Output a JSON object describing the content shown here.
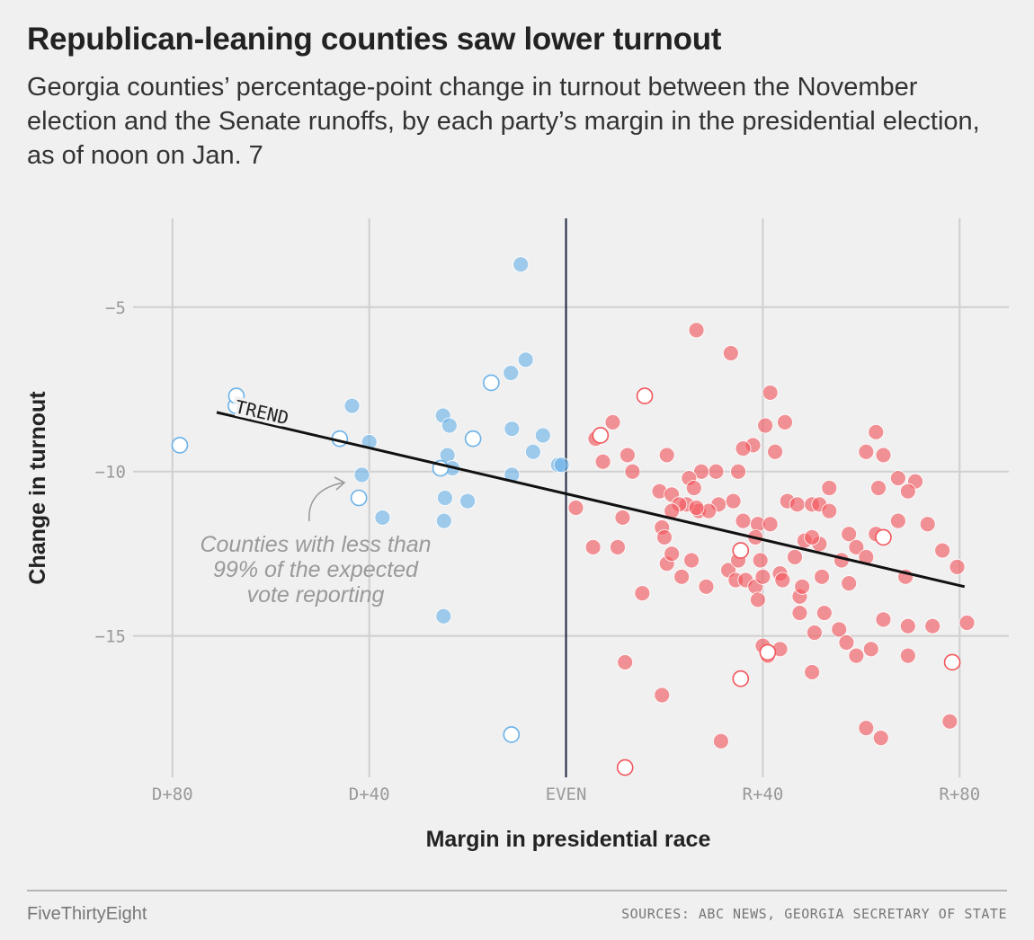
{
  "title": "Republican-leaning counties saw lower turnout",
  "subtitle": "Georgia counties’ percentage-point change in turnout between the November election and the Senate runoffs, by each party’s margin in the presidential election, as of noon on Jan. 7",
  "footer": {
    "brand": "FiveThirtyEight",
    "sources": "SOURCES: ABC NEWS, GEORGIA SECRETARY OF STATE"
  },
  "colors": {
    "democrat": "#6bb2e8",
    "republican": "#f2565c",
    "trend": "#111111",
    "even_line": "#1c2740",
    "grid": "#cfcfcf"
  },
  "chart_data": {
    "type": "scatter",
    "xlabel": "Margin in presidential race",
    "ylabel": "Change in turnout",
    "xlim": [
      -88,
      90
    ],
    "ylim": [
      -19.3,
      -2.3
    ],
    "x_ticks": [
      {
        "value": -80,
        "label": "D+80"
      },
      {
        "value": -40,
        "label": "D+40"
      },
      {
        "value": 0,
        "label": "EVEN"
      },
      {
        "value": 40,
        "label": "R+40"
      },
      {
        "value": 80,
        "label": "R+80"
      }
    ],
    "y_ticks": [
      {
        "value": -5,
        "label": "−5"
      },
      {
        "value": -10,
        "label": "−10"
      },
      {
        "value": -15,
        "label": "−15"
      }
    ],
    "grid": true,
    "reference_line": {
      "x": 0
    },
    "trend": {
      "label": "TREND",
      "x": [
        -71,
        81
      ],
      "y": [
        -8.2,
        -13.5
      ]
    },
    "annotation": {
      "lines": [
        "Counties with less than",
        "99% of the expected",
        "vote reporting"
      ]
    },
    "legend_note": "Open circles: counties with less than 99% of the expected vote reporting",
    "series": [
      {
        "party": "D",
        "points": [
          [
            -9.2,
            -3.7
          ],
          [
            -8.2,
            -6.6
          ],
          [
            -11.2,
            -7.0
          ],
          [
            -11.0,
            -8.7
          ],
          [
            -4.7,
            -8.9
          ],
          [
            -6.7,
            -9.4
          ],
          [
            -1.6,
            -9.8
          ],
          [
            -0.9,
            -9.8
          ],
          [
            -11.0,
            -10.1
          ],
          [
            -20.0,
            -10.9
          ],
          [
            -24.1,
            -9.5
          ],
          [
            -25.0,
            -8.3
          ],
          [
            -23.7,
            -8.6
          ],
          [
            -23.1,
            -9.9
          ],
          [
            -24.6,
            -10.8
          ],
          [
            -24.8,
            -11.5
          ],
          [
            -24.9,
            -14.4
          ],
          [
            -40.0,
            -9.1
          ],
          [
            -41.5,
            -10.1
          ],
          [
            -43.5,
            -8.0
          ],
          [
            -37.3,
            -11.4
          ]
        ]
      },
      {
        "party": "D",
        "incomplete": true,
        "points": [
          [
            -78.5,
            -9.2
          ],
          [
            -67.1,
            -8.0
          ],
          [
            -46.0,
            -9.0
          ],
          [
            -42.1,
            -10.8
          ],
          [
            -25.5,
            -9.9
          ],
          [
            -18.9,
            -9.0
          ],
          [
            -15.2,
            -7.3
          ],
          [
            -11.1,
            -18.0
          ],
          [
            -67.0,
            -7.7
          ]
        ]
      },
      {
        "party": "R",
        "points": [
          [
            26.5,
            -5.7
          ],
          [
            33.5,
            -6.4
          ],
          [
            41.5,
            -7.6
          ],
          [
            44.5,
            -8.5
          ],
          [
            40.5,
            -8.6
          ],
          [
            63.0,
            -8.8
          ],
          [
            61.0,
            -9.4
          ],
          [
            64.5,
            -9.5
          ],
          [
            38.0,
            -9.2
          ],
          [
            36.0,
            -9.3
          ],
          [
            42.5,
            -9.4
          ],
          [
            20.5,
            -9.5
          ],
          [
            12.5,
            -9.5
          ],
          [
            7.5,
            -9.7
          ],
          [
            6.0,
            -9.0
          ],
          [
            9.5,
            -8.5
          ],
          [
            13.5,
            -10.0
          ],
          [
            30.5,
            -10.0
          ],
          [
            35.0,
            -10.0
          ],
          [
            27.5,
            -10.0
          ],
          [
            25.0,
            -10.2
          ],
          [
            26.0,
            -10.5
          ],
          [
            53.5,
            -10.5
          ],
          [
            63.5,
            -10.5
          ],
          [
            67.5,
            -10.2
          ],
          [
            71.0,
            -10.3
          ],
          [
            69.5,
            -10.6
          ],
          [
            19.0,
            -10.6
          ],
          [
            21.5,
            -10.7
          ],
          [
            2.0,
            -11.1
          ],
          [
            11.5,
            -11.4
          ],
          [
            27.0,
            -11.2
          ],
          [
            34.0,
            -10.9
          ],
          [
            31.0,
            -11.0
          ],
          [
            29.0,
            -11.2
          ],
          [
            24.5,
            -11.0
          ],
          [
            23.0,
            -11.0
          ],
          [
            26.5,
            -11.1
          ],
          [
            21.5,
            -11.2
          ],
          [
            19.5,
            -11.7
          ],
          [
            20.0,
            -12.0
          ],
          [
            36.0,
            -11.5
          ],
          [
            39.0,
            -11.6
          ],
          [
            41.5,
            -11.6
          ],
          [
            45.0,
            -10.9
          ],
          [
            47.0,
            -11.0
          ],
          [
            50.0,
            -11.0
          ],
          [
            51.5,
            -11.0
          ],
          [
            53.5,
            -11.2
          ],
          [
            57.5,
            -11.9
          ],
          [
            59.0,
            -12.3
          ],
          [
            63.0,
            -11.9
          ],
          [
            67.5,
            -11.5
          ],
          [
            73.5,
            -11.6
          ],
          [
            76.5,
            -12.4
          ],
          [
            79.5,
            -12.9
          ],
          [
            81.5,
            -14.6
          ],
          [
            5.5,
            -12.3
          ],
          [
            10.5,
            -12.3
          ],
          [
            20.5,
            -12.8
          ],
          [
            21.5,
            -12.5
          ],
          [
            23.5,
            -13.2
          ],
          [
            25.5,
            -12.7
          ],
          [
            28.5,
            -13.5
          ],
          [
            33.0,
            -13.0
          ],
          [
            35.0,
            -12.7
          ],
          [
            34.5,
            -13.3
          ],
          [
            36.5,
            -13.3
          ],
          [
            38.5,
            -13.5
          ],
          [
            40.0,
            -13.2
          ],
          [
            39.5,
            -12.7
          ],
          [
            43.5,
            -13.1
          ],
          [
            44.0,
            -13.3
          ],
          [
            46.5,
            -12.6
          ],
          [
            47.5,
            -13.8
          ],
          [
            48.0,
            -13.5
          ],
          [
            48.5,
            -12.1
          ],
          [
            51.5,
            -12.2
          ],
          [
            50.0,
            -12.0
          ],
          [
            52.0,
            -13.2
          ],
          [
            56.0,
            -12.7
          ],
          [
            57.5,
            -13.4
          ],
          [
            61.0,
            -12.6
          ],
          [
            15.5,
            -13.7
          ],
          [
            40.0,
            -15.3
          ],
          [
            41.0,
            -15.6
          ],
          [
            43.5,
            -15.4
          ],
          [
            47.5,
            -14.3
          ],
          [
            50.5,
            -14.9
          ],
          [
            52.5,
            -14.3
          ],
          [
            55.5,
            -14.8
          ],
          [
            57.0,
            -15.2
          ],
          [
            59.0,
            -15.6
          ],
          [
            62.0,
            -15.4
          ],
          [
            64.5,
            -14.5
          ],
          [
            69.0,
            -13.2
          ],
          [
            69.5,
            -15.6
          ],
          [
            69.5,
            -14.7
          ],
          [
            74.5,
            -14.7
          ],
          [
            12.0,
            -15.8
          ],
          [
            19.5,
            -16.8
          ],
          [
            31.5,
            -18.2
          ],
          [
            61.0,
            -17.8
          ],
          [
            64.0,
            -18.1
          ],
          [
            78.0,
            -17.6
          ],
          [
            38.5,
            -12.0
          ],
          [
            39.0,
            -13.9
          ],
          [
            50.0,
            -16.1
          ]
        ]
      },
      {
        "party": "R",
        "incomplete": true,
        "points": [
          [
            16.0,
            -7.7
          ],
          [
            7.0,
            -8.9
          ],
          [
            35.5,
            -12.4
          ],
          [
            35.5,
            -16.3
          ],
          [
            41.0,
            -15.5
          ],
          [
            12.0,
            -19.0
          ],
          [
            78.5,
            -15.8
          ],
          [
            64.5,
            -12.0
          ]
        ]
      }
    ]
  }
}
